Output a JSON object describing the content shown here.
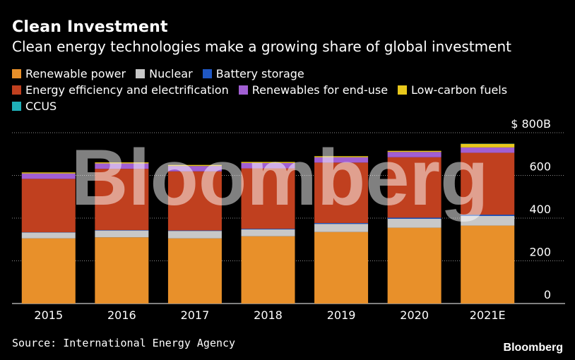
{
  "header": {
    "title": "Clean Investment",
    "subtitle": "Clean energy technologies make a growing share of global investment"
  },
  "legend": {
    "items": [
      {
        "label": "Renewable power",
        "color": "#e8902a"
      },
      {
        "label": "Nuclear",
        "color": "#c8c8c8"
      },
      {
        "label": "Battery storage",
        "color": "#1f57c3"
      },
      {
        "label": "Energy efficiency and electrification",
        "color": "#c0401f"
      },
      {
        "label": "Renewables for end-use",
        "color": "#a15fd3"
      },
      {
        "label": "Low-carbon fuels",
        "color": "#e8c81c"
      },
      {
        "label": "CCUS",
        "color": "#1fb0b8"
      }
    ]
  },
  "watermark": "Bloomberg",
  "footer": {
    "source": "Source: International Energy Agency",
    "brand": "Bloomberg"
  },
  "chart_data": {
    "type": "bar",
    "stacked": true,
    "title": "Clean Investment",
    "subtitle": "Clean energy technologies make a growing share of global investment",
    "xlabel": "",
    "ylabel": "",
    "ylim": [
      0,
      800
    ],
    "yticks": [
      0,
      200,
      400,
      600,
      800
    ],
    "ytick_labels": [
      "0",
      "200",
      "400",
      "600",
      "$ 800B"
    ],
    "y_axis_side": "right",
    "grid": "horizontal",
    "categories": [
      "2015",
      "2016",
      "2017",
      "2018",
      "2019",
      "2020",
      "2021E"
    ],
    "series": [
      {
        "name": "Renewable power",
        "color": "#e8902a",
        "values": [
          305,
          310,
          305,
          315,
          335,
          355,
          365
        ]
      },
      {
        "name": "Nuclear",
        "color": "#c8c8c8",
        "values": [
          28,
          32,
          35,
          32,
          38,
          42,
          45
        ]
      },
      {
        "name": "Battery storage",
        "color": "#1f57c3",
        "values": [
          1,
          2,
          2,
          3,
          4,
          5,
          6
        ]
      },
      {
        "name": "Energy efficiency and electrification",
        "color": "#c0401f",
        "values": [
          250,
          287,
          277,
          283,
          283,
          283,
          290
        ]
      },
      {
        "name": "Renewables for end-use",
        "color": "#a15fd3",
        "values": [
          25,
          25,
          25,
          25,
          25,
          25,
          25
        ]
      },
      {
        "name": "Low-carbon fuels",
        "color": "#e8c81c",
        "values": [
          5,
          5,
          5,
          5,
          5,
          5,
          17
        ]
      },
      {
        "name": "CCUS",
        "color": "#1fb0b8",
        "values": [
          0,
          0,
          0,
          0,
          0,
          0,
          1
        ]
      }
    ]
  }
}
